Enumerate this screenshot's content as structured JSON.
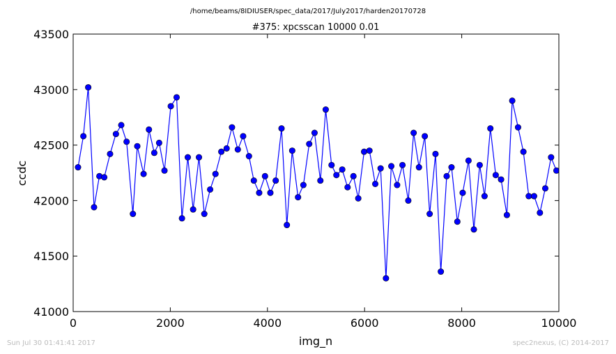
{
  "chart_data": {
    "type": "line",
    "suptitle": "/home/beams/8IDIUSER/spec_data/2017/July2017/harden20170728",
    "title": "#375: xpcsscan 10000 0.01",
    "xlabel": "img_n",
    "ylabel": "ccdc",
    "xlim": [
      0,
      10000
    ],
    "ylim": [
      41000,
      43500
    ],
    "xticks": [
      0,
      2000,
      4000,
      6000,
      8000,
      10000
    ],
    "yticks": [
      41000,
      41500,
      42000,
      42500,
      43000,
      43500
    ],
    "grid": false,
    "marker": "circle",
    "color": "#0000ff",
    "series": [
      {
        "x": [
          100,
          210,
          310,
          430,
          540,
          640,
          760,
          880,
          990,
          1100,
          1230,
          1320,
          1450,
          1560,
          1670,
          1770,
          1880,
          2010,
          2130,
          2240,
          2360,
          2470,
          2590,
          2700,
          2820,
          2930,
          3050,
          3160,
          3270,
          3390,
          3500,
          3620,
          3720,
          3830,
          3950,
          4060,
          4170,
          4290,
          4400,
          4510,
          4630,
          4740,
          4860,
          4970,
          5090,
          5200,
          5320,
          5420,
          5540,
          5650,
          5770,
          5870,
          5990,
          6100,
          6220,
          6330,
          6440,
          6550,
          6670,
          6780,
          6900,
          7010,
          7120,
          7240,
          7340,
          7460,
          7570,
          7690,
          7790,
          7910,
          8020,
          8140,
          8250,
          8370,
          8470,
          8590,
          8700,
          8810,
          8930,
          9040,
          9160,
          9270,
          9380,
          9490,
          9610,
          9720,
          9840,
          9950
        ],
        "y": [
          42300,
          42580,
          43020,
          41940,
          42220,
          42210,
          42420,
          42600,
          42680,
          42530,
          41880,
          42490,
          42240,
          42640,
          42430,
          42520,
          42270,
          42850,
          42930,
          41840,
          42390,
          41920,
          42390,
          41880,
          42100,
          42240,
          42440,
          42470,
          42660,
          42460,
          42580,
          42400,
          42180,
          42070,
          42220,
          42070,
          42180,
          42650,
          41780,
          42450,
          42030,
          42140,
          42510,
          42610,
          42180,
          42820,
          42320,
          42230,
          42280,
          42120,
          42220,
          42020,
          42440,
          42450,
          42150,
          42290,
          41300,
          42310,
          42140,
          42320,
          42000,
          42610,
          42300,
          42580,
          41880,
          42420,
          41360,
          42220,
          42300,
          41810,
          42070,
          42360,
          41740,
          42320,
          42040,
          42650,
          42230,
          42190,
          41870,
          42900,
          42660,
          42440,
          42040,
          42040,
          41890,
          42110,
          42390,
          42270
        ]
      }
    ]
  },
  "footer": {
    "timestamp": "Sun Jul 30 01:41:41 2017",
    "credit": "spec2nexus, (C) 2014-2017"
  }
}
